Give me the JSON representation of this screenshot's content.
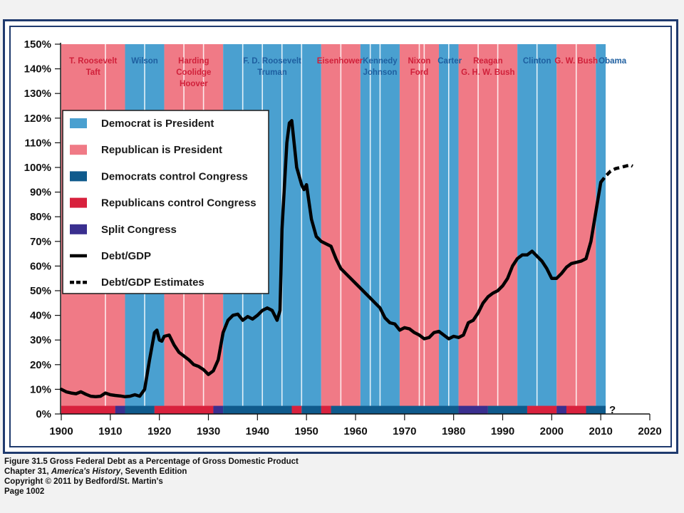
{
  "colors": {
    "democrat_president": "#4aa0d0",
    "republican_president": "#f07a86",
    "democrats_congress": "#0f5a8c",
    "republicans_congress": "#d8213d",
    "split_congress": "#3a2f8f",
    "debt_line": "#000000",
    "dem_label": "#1e5fa0",
    "rep_label": "#d0203a",
    "frame": "#1f3a6e"
  },
  "chart_data": {
    "type": "line",
    "xlim": [
      1900,
      2020
    ],
    "ylim": [
      0,
      150
    ],
    "x_ticks": [
      1900,
      1910,
      1920,
      1930,
      1940,
      1950,
      1960,
      1970,
      1980,
      1990,
      2000,
      2010,
      2020
    ],
    "x_tick_labels": [
      "1900",
      "1910",
      "1920",
      "1930",
      "1940",
      "1950",
      "1960",
      "1970",
      "1980",
      "1990",
      "2000",
      "2010",
      "2020"
    ],
    "y_ticks": [
      0,
      10,
      20,
      30,
      40,
      50,
      60,
      70,
      80,
      90,
      100,
      110,
      120,
      130,
      140,
      150
    ],
    "y_tick_labels": [
      "0%",
      "10%",
      "20%",
      "30%",
      "40%",
      "50%",
      "60%",
      "70%",
      "80%",
      "90%",
      "100%",
      "110%",
      "120%",
      "130%",
      "140%",
      "150%"
    ],
    "grid": false,
    "legend_position": "left",
    "legend": [
      {
        "label": "Democrat is President",
        "swatch": "democrat_president",
        "kind": "box"
      },
      {
        "label": "Republican is President",
        "swatch": "republican_president",
        "kind": "box"
      },
      {
        "label": "Democrats control Congress",
        "swatch": "democrats_congress",
        "kind": "box"
      },
      {
        "label": "Republicans control Congress",
        "swatch": "republicans_congress",
        "kind": "box"
      },
      {
        "label": "Split Congress",
        "swatch": "split_congress",
        "kind": "box"
      },
      {
        "label": "Debt/GDP",
        "swatch": "debt_line",
        "kind": "solid"
      },
      {
        "label": "Debt/GDP Estimates",
        "swatch": "debt_line",
        "kind": "dashed"
      }
    ],
    "presidency_bands": [
      {
        "start": 1900,
        "end": 1913,
        "party": "R",
        "label": [
          "T. Roosevelt",
          "Taft"
        ],
        "center": 1906.5
      },
      {
        "start": 1913,
        "end": 1921,
        "party": "D",
        "label": [
          "Wilson"
        ],
        "center": 1917
      },
      {
        "start": 1921,
        "end": 1933,
        "party": "R",
        "label": [
          "Harding",
          "Coolidge",
          "Hoover"
        ],
        "center": 1927
      },
      {
        "start": 1933,
        "end": 1953,
        "party": "D",
        "label": [
          "F. D. Roosevelt",
          "Truman"
        ],
        "center": 1943
      },
      {
        "start": 1953,
        "end": 1961,
        "party": "R",
        "label": [
          "Eisenhower"
        ],
        "center": 1956.8
      },
      {
        "start": 1961,
        "end": 1969,
        "party": "D",
        "label": [
          "Kennedy",
          "Johnson"
        ],
        "center": 1965
      },
      {
        "start": 1969,
        "end": 1977,
        "party": "R",
        "label": [
          "Nixon",
          "Ford"
        ],
        "center": 1973
      },
      {
        "start": 1977,
        "end": 1981,
        "party": "D",
        "label": [
          "Carter"
        ],
        "center": 1979.2
      },
      {
        "start": 1981,
        "end": 1993,
        "party": "R",
        "label": [
          "Reagan",
          "G. H. W. Bush"
        ],
        "center": 1987
      },
      {
        "start": 1993,
        "end": 2001,
        "party": "D",
        "label": [
          "Clinton"
        ],
        "center": 1997
      },
      {
        "start": 2001,
        "end": 2009,
        "party": "R",
        "label": [
          "G. W. Bush"
        ],
        "center": 2005
      },
      {
        "start": 2009,
        "end": 2011,
        "party": "D",
        "label": [
          "Obama"
        ],
        "center": 2012.4
      }
    ],
    "term_dividers": [
      1909,
      1917,
      1925,
      1929,
      1937,
      1941,
      1945,
      1949,
      1957,
      1963,
      1965,
      1973,
      1974,
      1979,
      1985,
      1989,
      1997,
      2005
    ],
    "congress_bands": [
      {
        "start": 1900,
        "end": 1911,
        "control": "R"
      },
      {
        "start": 1911,
        "end": 1913,
        "control": "S"
      },
      {
        "start": 1913,
        "end": 1919,
        "control": "D"
      },
      {
        "start": 1919,
        "end": 1931,
        "control": "R"
      },
      {
        "start": 1931,
        "end": 1933,
        "control": "S"
      },
      {
        "start": 1933,
        "end": 1947,
        "control": "D"
      },
      {
        "start": 1947,
        "end": 1949,
        "control": "R"
      },
      {
        "start": 1949,
        "end": 1953,
        "control": "D"
      },
      {
        "start": 1953,
        "end": 1955,
        "control": "R"
      },
      {
        "start": 1955,
        "end": 1981,
        "control": "D"
      },
      {
        "start": 1981,
        "end": 1987,
        "control": "S"
      },
      {
        "start": 1987,
        "end": 1995,
        "control": "D"
      },
      {
        "start": 1995,
        "end": 2001,
        "control": "R"
      },
      {
        "start": 2001,
        "end": 2003,
        "control": "S"
      },
      {
        "start": 2003,
        "end": 2007,
        "control": "R"
      },
      {
        "start": 2007,
        "end": 2011,
        "control": "D"
      }
    ],
    "congress_future_marker": "?",
    "series": [
      {
        "name": "Debt/GDP",
        "style": "solid",
        "points": [
          [
            1900,
            10
          ],
          [
            1901,
            9
          ],
          [
            1902,
            8.5
          ],
          [
            1903,
            8.2
          ],
          [
            1904,
            9
          ],
          [
            1905,
            8
          ],
          [
            1906,
            7.2
          ],
          [
            1907,
            7
          ],
          [
            1908,
            7.2
          ],
          [
            1909,
            8.5
          ],
          [
            1910,
            7.8
          ],
          [
            1911,
            7.5
          ],
          [
            1912,
            7.3
          ],
          [
            1913,
            7
          ],
          [
            1914,
            7.2
          ],
          [
            1915,
            7.8
          ],
          [
            1916,
            7.2
          ],
          [
            1917,
            10
          ],
          [
            1918,
            22
          ],
          [
            1919,
            33
          ],
          [
            1919.5,
            34
          ],
          [
            1920,
            30
          ],
          [
            1920.5,
            29.5
          ],
          [
            1921,
            31.5
          ],
          [
            1922,
            32
          ],
          [
            1923,
            28
          ],
          [
            1924,
            25
          ],
          [
            1925,
            23.5
          ],
          [
            1926,
            22
          ],
          [
            1927,
            20
          ],
          [
            1928,
            19.3
          ],
          [
            1929,
            18
          ],
          [
            1930,
            16
          ],
          [
            1931,
            17.5
          ],
          [
            1932,
            22
          ],
          [
            1933,
            33
          ],
          [
            1934,
            38
          ],
          [
            1935,
            40
          ],
          [
            1936,
            40.5
          ],
          [
            1937,
            38
          ],
          [
            1938,
            39.5
          ],
          [
            1939,
            38.5
          ],
          [
            1940,
            40
          ],
          [
            1941,
            42
          ],
          [
            1942,
            43
          ],
          [
            1943,
            42
          ],
          [
            1944,
            38
          ],
          [
            1944.6,
            42
          ],
          [
            1945,
            75
          ],
          [
            1946,
            110
          ],
          [
            1946.5,
            118
          ],
          [
            1947,
            119
          ],
          [
            1948,
            100
          ],
          [
            1949,
            93
          ],
          [
            1949.5,
            91
          ],
          [
            1950,
            93
          ],
          [
            1951,
            79
          ],
          [
            1952,
            72
          ],
          [
            1953,
            70
          ],
          [
            1954,
            69
          ],
          [
            1955,
            68
          ],
          [
            1956,
            63
          ],
          [
            1957,
            59
          ],
          [
            1958,
            57
          ],
          [
            1959,
            55
          ],
          [
            1960,
            53
          ],
          [
            1961,
            51
          ],
          [
            1962,
            49
          ],
          [
            1963,
            47
          ],
          [
            1964,
            45
          ],
          [
            1965,
            43
          ],
          [
            1966,
            39
          ],
          [
            1967,
            37
          ],
          [
            1968,
            36.5
          ],
          [
            1969,
            34
          ],
          [
            1970,
            35
          ],
          [
            1971,
            34.5
          ],
          [
            1972,
            33
          ],
          [
            1973,
            32
          ],
          [
            1974,
            30.5
          ],
          [
            1975,
            31
          ],
          [
            1976,
            33
          ],
          [
            1977,
            33.5
          ],
          [
            1978,
            32
          ],
          [
            1979,
            30.5
          ],
          [
            1980,
            31.5
          ],
          [
            1981,
            31
          ],
          [
            1982,
            32
          ],
          [
            1983,
            37
          ],
          [
            1984,
            38
          ],
          [
            1985,
            41
          ],
          [
            1986,
            45
          ],
          [
            1987,
            47.5
          ],
          [
            1988,
            49
          ],
          [
            1989,
            50
          ],
          [
            1990,
            52
          ],
          [
            1991,
            55
          ],
          [
            1992,
            60
          ],
          [
            1993,
            63
          ],
          [
            1994,
            64.5
          ],
          [
            1995,
            64.5
          ],
          [
            1996,
            66
          ],
          [
            1997,
            64
          ],
          [
            1998,
            62
          ],
          [
            1999,
            59
          ],
          [
            2000,
            55
          ],
          [
            2001,
            55
          ],
          [
            2002,
            57
          ],
          [
            2003,
            59.5
          ],
          [
            2004,
            61
          ],
          [
            2005,
            61.5
          ],
          [
            2006,
            62
          ],
          [
            2007,
            63
          ],
          [
            2008,
            70
          ],
          [
            2009,
            82
          ],
          [
            2010,
            94
          ]
        ]
      },
      {
        "name": "Debt/GDP Estimates",
        "style": "dashed",
        "points": [
          [
            2010,
            94
          ],
          [
            2011,
            96.5
          ],
          [
            2012,
            98.5
          ],
          [
            2013,
            99.5
          ],
          [
            2014,
            100
          ],
          [
            2015,
            100.5
          ],
          [
            2016,
            101
          ],
          [
            2016.5,
            100.5
          ]
        ]
      }
    ]
  },
  "caption": {
    "line1": "Figure 31.5  Gross Federal Debt as a Percentage of Gross Domestic Product",
    "line2_prefix": "Chapter 31, ",
    "line2_italic": "America's History",
    "line2_suffix": ", Seventh Edition",
    "line3": "Copyright © 2011 by Bedford/St. Martin's",
    "line4": "Page 1002"
  }
}
